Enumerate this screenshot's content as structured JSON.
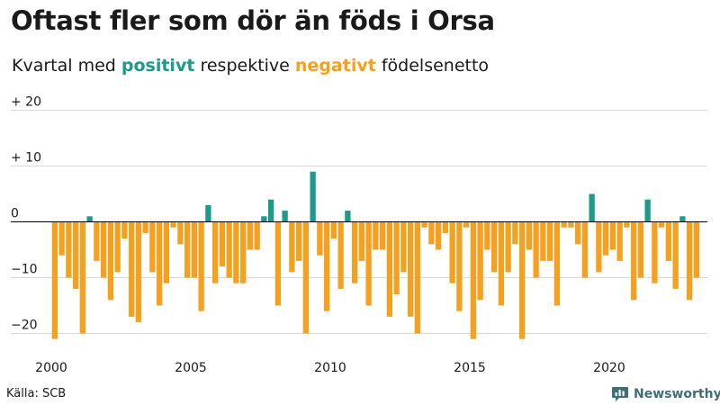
{
  "title": "Oftast fler som dör än föds i Orsa",
  "subtitle": {
    "prefix": "Kvartal med ",
    "positive": "positivt",
    "middle": " respektive ",
    "negative": "negativt",
    "suffix": " födelsenetto"
  },
  "colors": {
    "positive": "#1f9a8a",
    "negative": "#f5a01e",
    "grid": "#d9d9d9",
    "zero": "#000000",
    "brand": "#3f6f74"
  },
  "source": "Källa: SCB",
  "brand": {
    "name": "Newsworthy",
    "icon": "bar-chart-logo-icon"
  },
  "chart_data": {
    "type": "bar",
    "xlabel": "",
    "ylabel": "",
    "ylim": [
      -22,
      22
    ],
    "y_ticks": [
      {
        "value": 20,
        "label": "+ 20"
      },
      {
        "value": 10,
        "label": "+ 10"
      },
      {
        "value": 0,
        "label": "0"
      },
      {
        "value": -10,
        "label": "−10"
      },
      {
        "value": -20,
        "label": "−20"
      }
    ],
    "x_ticks": [
      {
        "year": 2000,
        "label": "2000"
      },
      {
        "year": 2005,
        "label": "2005"
      },
      {
        "year": 2010,
        "label": "2010"
      },
      {
        "year": 2015,
        "label": "2015"
      },
      {
        "year": 2020,
        "label": "2020"
      }
    ],
    "start_year": 2000,
    "values": [
      -21,
      -6,
      -10,
      -12,
      -20,
      1,
      -7,
      -10,
      -14,
      -9,
      -3,
      -17,
      -18,
      -2,
      -9,
      -15,
      -11,
      -1,
      -4,
      -10,
      -10,
      -16,
      3,
      -11,
      -8,
      -10,
      -11,
      -11,
      -5,
      -5,
      1,
      4,
      -15,
      2,
      -9,
      -7,
      -20,
      9,
      -6,
      -16,
      -3,
      -12,
      2,
      -11,
      -7,
      -15,
      -5,
      -5,
      -17,
      -13,
      -9,
      -17,
      -20,
      -1,
      -4,
      -5,
      -2,
      -11,
      -16,
      -1,
      -21,
      -14,
      -5,
      -9,
      -15,
      -9,
      -4,
      -21,
      -5,
      -10,
      -7,
      -7,
      -15,
      -1,
      -1,
      -4,
      -10,
      5,
      -9,
      -6,
      -5,
      -7,
      -1,
      -14,
      -10,
      4,
      -11,
      -1,
      -7,
      -12,
      1,
      -14,
      -10
    ]
  }
}
